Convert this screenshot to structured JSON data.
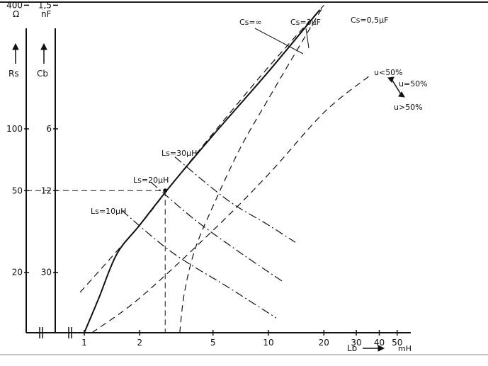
{
  "chart_data": {
    "type": "line",
    "xlabel": "Lb",
    "xunit": "mH",
    "x_scale": "log",
    "xlim": [
      0.85,
      50
    ],
    "x_ticks": [
      {
        "value": 1,
        "label": "1"
      },
      {
        "value": 2,
        "label": "2"
      },
      {
        "value": 5,
        "label": "5"
      },
      {
        "value": 10,
        "label": "10"
      },
      {
        "value": 20,
        "label": "20"
      },
      {
        "value": 30,
        "label": "30"
      },
      {
        "value": 40,
        "label": "40"
      },
      {
        "value": 50,
        "label": "50"
      }
    ],
    "y_scale": "log",
    "y_axes": [
      {
        "name": "Rs",
        "unit": "Ω",
        "ticks": [
          {
            "value": 400,
            "label": "400"
          },
          {
            "value": 100,
            "label": "100"
          },
          {
            "value": 50,
            "label": "50"
          },
          {
            "value": 20,
            "label": "20"
          }
        ]
      },
      {
        "name": "Cb",
        "unit": "nF",
        "ticks": [
          {
            "value": 1.5,
            "label": "1,5"
          },
          {
            "value": 6,
            "label": "6"
          },
          {
            "value": 12,
            "label": "12"
          },
          {
            "value": 30,
            "label": "30"
          }
        ]
      }
    ],
    "ylim_rs": [
      9,
      420
    ],
    "series": [
      {
        "name": "Cs=∞",
        "style": "solid",
        "x": [
          1,
          1.2,
          1.5,
          2,
          3,
          5,
          10,
          19
        ],
        "y": [
          9,
          15,
          24.5,
          34,
          54,
          93,
          190,
          380
        ]
      },
      {
        "name": "Cs=3μF",
        "style": "dashed",
        "x": [
          0.95,
          2,
          3,
          5,
          10,
          20
        ],
        "y": [
          16,
          34,
          54,
          95,
          200,
          400
        ]
      },
      {
        "name": "Cs=0,5μF",
        "style": "dashed",
        "x": [
          3.3,
          3.5,
          4,
          5,
          7,
          10,
          15,
          20
        ],
        "y": [
          9,
          16,
          26,
          42,
          80,
          140,
          260,
          400
        ]
      },
      {
        "name": "Ls=10μH",
        "style": "dashdot",
        "x": [
          1.6,
          3,
          6,
          11
        ],
        "y": [
          40,
          25,
          17,
          12
        ]
      },
      {
        "name": "Ls=20μH",
        "style": "dashdot",
        "x": [
          2.3,
          4,
          7,
          12
        ],
        "y": [
          55,
          36,
          25,
          18
        ]
      },
      {
        "name": "Ls=30μH",
        "style": "dashdot",
        "x": [
          3.1,
          6,
          10,
          14
        ],
        "y": [
          73,
          45,
          34,
          28
        ]
      },
      {
        "name": "u=50%",
        "style": "dashed",
        "x": [
          1.1,
          2,
          5,
          10,
          20,
          35
        ],
        "y": [
          9,
          15,
          32,
          60,
          120,
          180
        ]
      }
    ],
    "guide": {
      "x": 2.75,
      "y": 50
    },
    "annotations": {
      "u_lt": "u<50%",
      "u_eq": "u=50%",
      "u_gt": "u>50%"
    }
  }
}
